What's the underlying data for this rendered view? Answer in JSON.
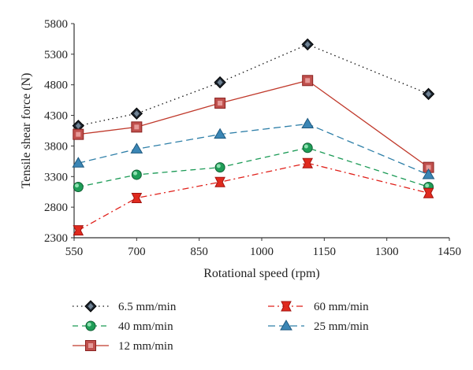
{
  "chart_data": {
    "type": "line",
    "xlabel": "Rotational speed (rpm)",
    "ylabel": "Tensile shear force (N)",
    "xlim": [
      550,
      1450
    ],
    "ylim": [
      2300,
      5800
    ],
    "xticks": [
      "550",
      "700",
      "850",
      "1000",
      "1150",
      "1300",
      "1450"
    ],
    "yticks": [
      "2300",
      "2800",
      "3300",
      "3800",
      "4300",
      "4800",
      "5300",
      "5800"
    ],
    "x": [
      560,
      700,
      900,
      1110,
      1400
    ],
    "grid": false,
    "legend_position": "bottom",
    "series": [
      {
        "name": "6.5 mm/min",
        "values": [
          4130,
          4330,
          4840,
          5460,
          4650
        ],
        "color": "#111111",
        "dash": "dotted",
        "marker": "diamond"
      },
      {
        "name": "40 mm/min",
        "values": [
          3130,
          3330,
          3450,
          3770,
          3130
        ],
        "color": "#1a9a55",
        "dash": "dashed",
        "marker": "circle"
      },
      {
        "name": "12 mm/min",
        "values": [
          3990,
          4110,
          4500,
          4870,
          3450
        ],
        "color": "#c0392b",
        "dash": "solid",
        "marker": "square"
      },
      {
        "name": "60 mm/min",
        "values": [
          2420,
          2950,
          3210,
          3520,
          3030
        ],
        "color": "#e0201a",
        "dash": "dashdot",
        "marker": "bowtie"
      },
      {
        "name": "25 mm/min",
        "values": [
          3520,
          3750,
          3990,
          4160,
          3330
        ],
        "color": "#2e7fa8",
        "dash": "longdash",
        "marker": "triangle"
      }
    ]
  }
}
